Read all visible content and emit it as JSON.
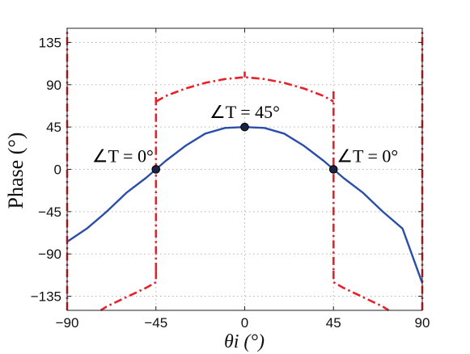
{
  "chart_data": {
    "type": "line",
    "title": "",
    "xlabel": "θi (°)",
    "ylabel": "Phase (°)",
    "xlim": [
      -90,
      90
    ],
    "ylim": [
      -150,
      150
    ],
    "xticks": [
      -90,
      -45,
      0,
      45,
      90
    ],
    "xtick_labels": [
      "−90",
      "−45",
      "0",
      "45",
      "90"
    ],
    "yticks": [
      -135,
      -90,
      -45,
      0,
      45,
      90,
      135
    ],
    "ytick_labels": [
      "−135",
      "−90",
      "−45",
      "0",
      "45",
      "90",
      "135"
    ],
    "grid": true,
    "series": [
      {
        "style": "solid",
        "color": "#2b4ea8",
        "x": [
          -90,
          -80,
          -70,
          -60,
          -50,
          -45,
          -40,
          -30,
          -20,
          -10,
          0,
          10,
          20,
          30,
          40,
          45,
          50,
          60,
          70,
          80,
          90
        ],
        "y": [
          -77,
          -63,
          -45,
          -25,
          -9,
          0,
          9,
          25,
          38,
          44,
          45,
          44,
          38,
          25,
          9,
          0,
          -9,
          -25,
          -45,
          -63,
          -121
        ]
      },
      {
        "style": "dash-dot",
        "color": "#e8202a",
        "segments": [
          {
            "x": [
              -90,
              -90
            ],
            "y": [
              -150,
              150
            ]
          },
          {
            "x": [
              -45,
              -45,
              -50,
              -60,
              -70,
              -73
            ],
            "y": [
              -108,
              -120,
              -126,
              -136,
              -146,
              -150
            ]
          },
          {
            "x": [
              -45,
              -45
            ],
            "y": [
              -108,
              83
            ]
          },
          {
            "x": [
              -45,
              -40,
              -30,
              -20,
              -10,
              0,
              10,
              20,
              30,
              40,
              45
            ],
            "y": [
              72,
              78,
              86,
              92,
              96,
              98,
              96,
              92,
              86,
              78,
              72
            ]
          },
          {
            "x": [
              0,
              0
            ],
            "y": [
              98,
              104
            ]
          },
          {
            "x": [
              45,
              45
            ],
            "y": [
              83,
              -108
            ]
          },
          {
            "x": [
              45,
              45,
              50,
              60,
              70,
              73
            ],
            "y": [
              -108,
              -120,
              -126,
              -136,
              -146,
              -150
            ]
          },
          {
            "x": [
              90,
              90
            ],
            "y": [
              -150,
              150
            ]
          }
        ]
      }
    ],
    "markers": [
      {
        "x": -45,
        "y": 0
      },
      {
        "x": 0,
        "y": 45
      },
      {
        "x": 45,
        "y": 0
      }
    ],
    "annotations": [
      {
        "label": "∠T = 0°",
        "x": -45,
        "y": 0
      },
      {
        "label": "∠T = 45°",
        "x": 0,
        "y": 45
      },
      {
        "label": "∠T = 0°",
        "x": 45,
        "y": 0
      }
    ]
  }
}
